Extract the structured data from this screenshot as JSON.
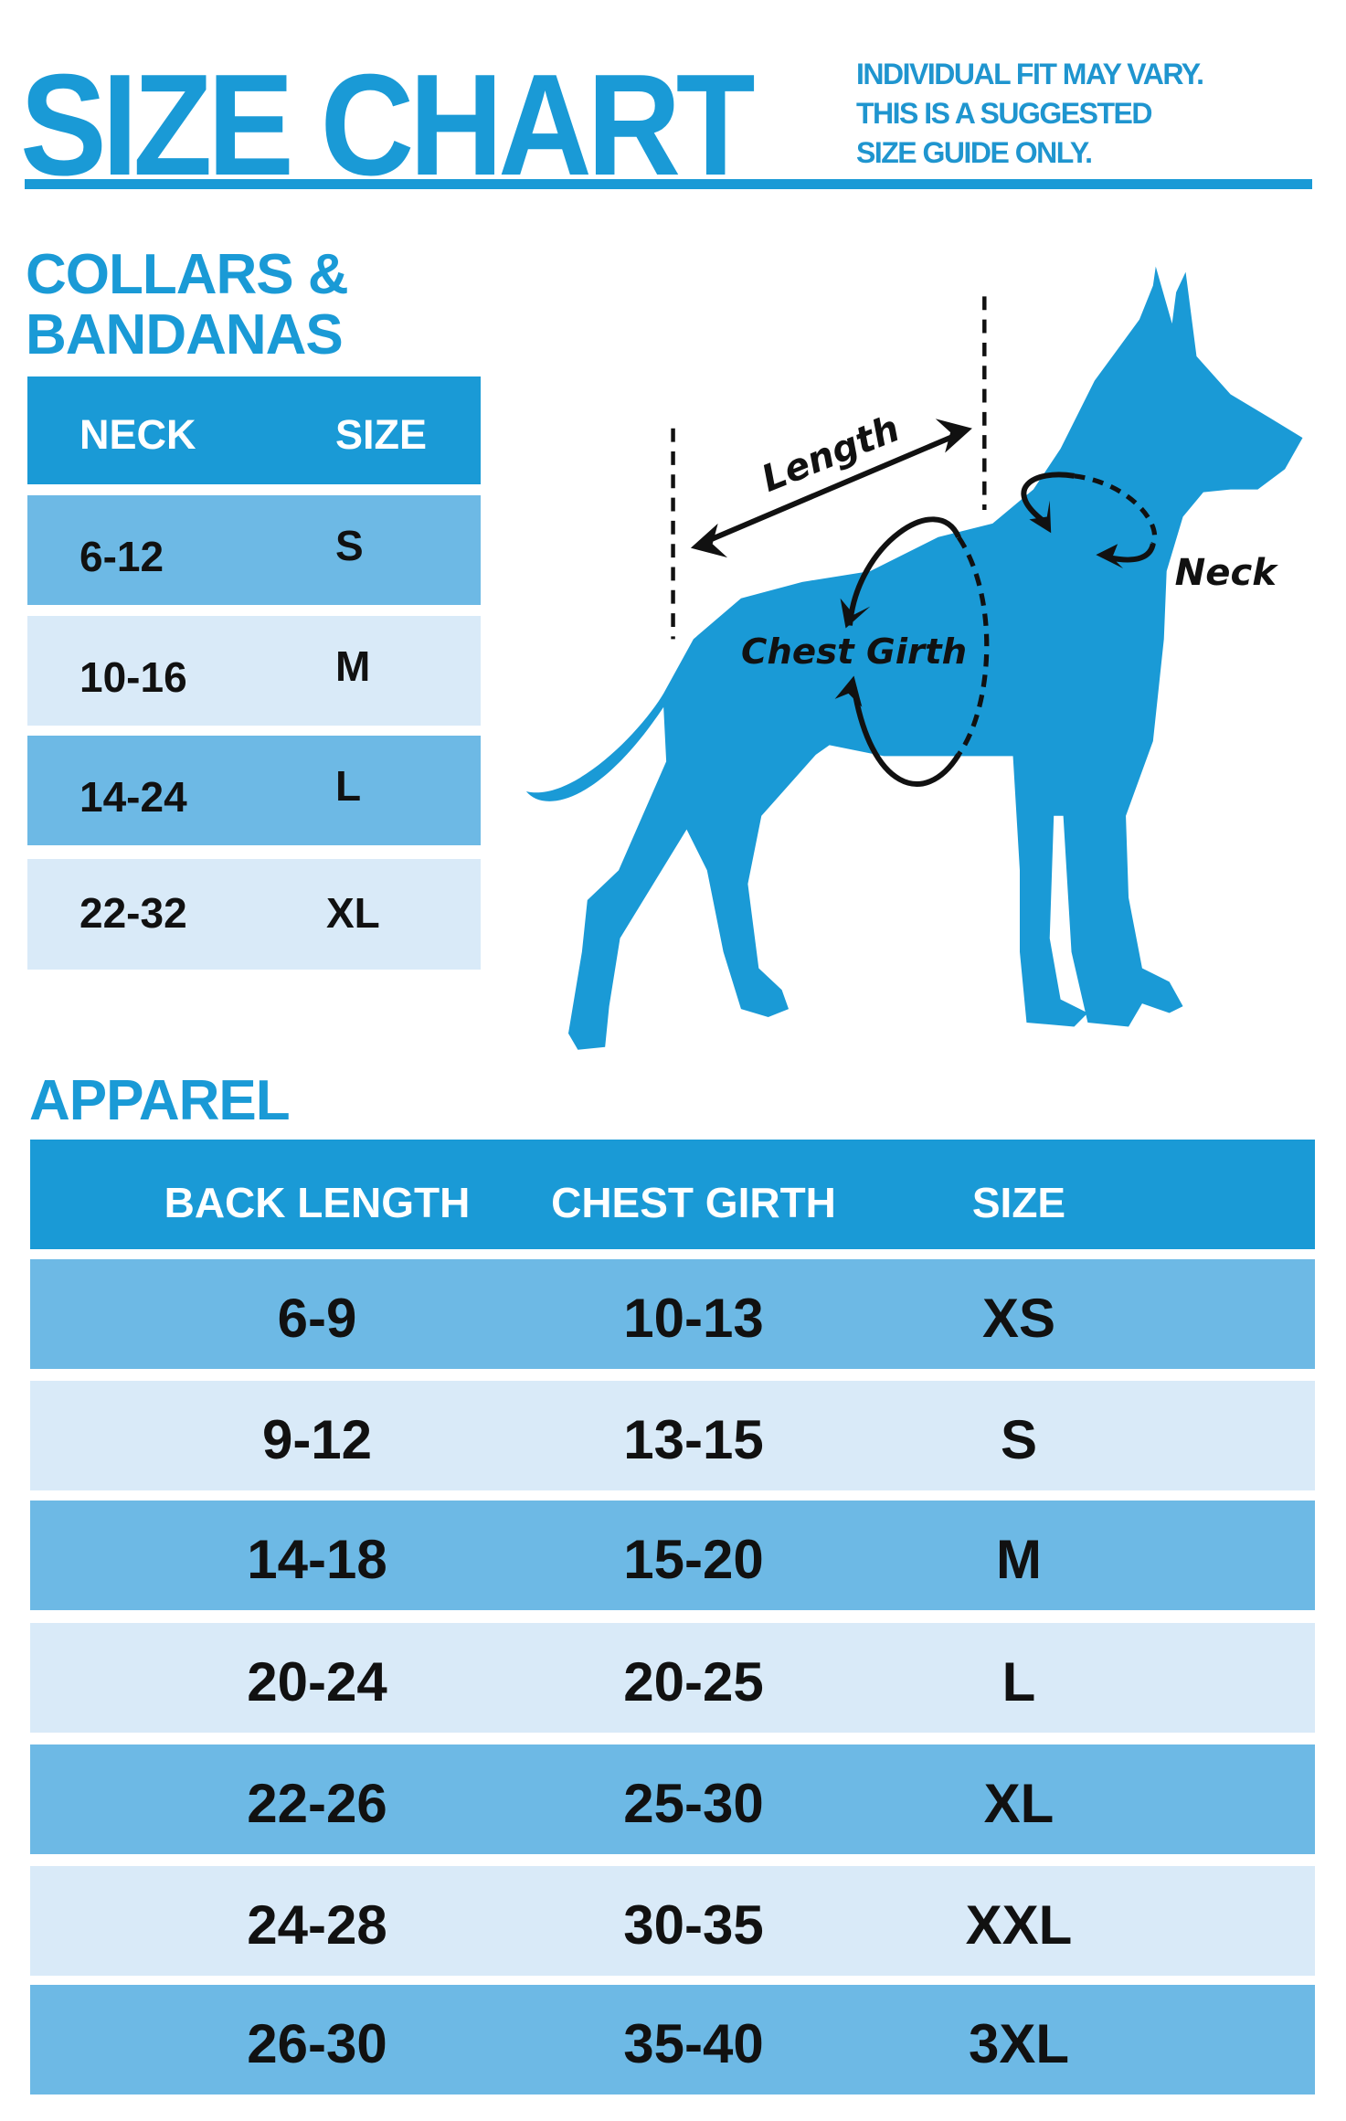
{
  "header": {
    "title": "SIZE CHART",
    "note_lines": [
      "INDIVIDUAL FIT MAY VARY.",
      "THIS IS A SUGGESTED",
      "SIZE GUIDE ONLY."
    ]
  },
  "collars": {
    "title_lines": [
      "COLLARS &",
      "BANDANAS"
    ],
    "columns": [
      "NECK",
      "SIZE"
    ],
    "rows": [
      {
        "neck": "6-12",
        "size": "S"
      },
      {
        "neck": "10-16",
        "size": "M"
      },
      {
        "neck": "14-24",
        "size": "L"
      },
      {
        "neck": "22-32",
        "size": "XL"
      }
    ]
  },
  "diagram": {
    "length_label": "Length",
    "chest_label": "Chest Girth",
    "neck_label": "Neck"
  },
  "apparel": {
    "title": "APPAREL",
    "columns": [
      "BACK LENGTH",
      "CHEST GIRTH",
      "SIZE"
    ],
    "rows": [
      {
        "back": "6-9",
        "chest": "10-13",
        "size": "XS"
      },
      {
        "back": "9-12",
        "chest": "13-15",
        "size": "S"
      },
      {
        "back": "14-18",
        "chest": "15-20",
        "size": "M"
      },
      {
        "back": "20-24",
        "chest": "20-25",
        "size": "L"
      },
      {
        "back": "22-26",
        "chest": "25-30",
        "size": "XL"
      },
      {
        "back": "24-28",
        "chest": "30-35",
        "size": "XXL"
      },
      {
        "back": "26-30",
        "chest": "35-40",
        "size": "3XL"
      }
    ]
  },
  "colors": {
    "brand_blue": "#1a9ad6",
    "row_dark": "#6db9e5",
    "row_light": "#d9eaf8"
  }
}
